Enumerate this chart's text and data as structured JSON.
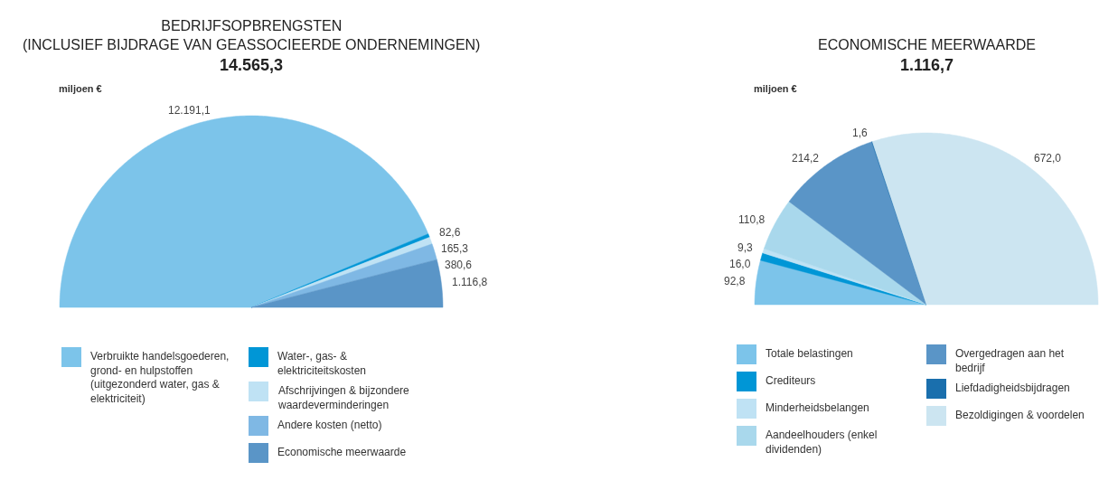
{
  "chart_data": [
    {
      "type": "pie",
      "title": "BEDRIJFSOPBRENGSTEN\n(INCLUSIEF BIJDRAGE VAN GEASSOCIEERDE ONDERNEMINGEN)",
      "subtitle": "14.565,3",
      "annotations": [
        "miljoen €"
      ],
      "categories": [
        "Verbruikte handelsgoederen, grond- en hulpstoffen (uitgezonderd water, gas & elektriciteit)",
        "Water-, gas- & elektriciteitskosten",
        "Afschrijvingen & bijzondere waardeverminderingen",
        "Andere kosten (netto)",
        "Economische meerwaarde"
      ],
      "values": [
        12191.1,
        82.6,
        165.3,
        380.6,
        1116.8
      ],
      "value_labels": [
        "12.191,1",
        "82,6",
        "165,3",
        "380,6",
        "1.116,8"
      ],
      "colors": [
        "#7cc4ea",
        "#0096d6",
        "#bfe2f4",
        "#7fb8e4",
        "#5a95c7"
      ],
      "legend": "bottom"
    },
    {
      "type": "pie",
      "title": "ECONOMISCHE MEERWAARDE",
      "subtitle": "1.116,7",
      "annotations": [
        "miljoen €"
      ],
      "categories": [
        "Totale belastingen",
        "Crediteurs",
        "Minderheidsbelangen",
        "Aandeelhouders (enkel dividenden)",
        "Overgedragen aan het bedrijf",
        "Liefdadigheidsbijdragen",
        "Bezoldigingen & voordelen"
      ],
      "values": [
        92.8,
        16.0,
        9.3,
        110.8,
        214.2,
        1.6,
        672.0
      ],
      "value_labels": [
        "92,8",
        "16,0",
        "9,3",
        "110,8",
        "214,2",
        "1,6",
        "672,0"
      ],
      "colors": [
        "#7cc4ea",
        "#0096d6",
        "#bfe2f4",
        "#a9d8ec",
        "#5a95c7",
        "#1a6fad",
        "#cce5f1"
      ],
      "legend": "bottom"
    }
  ]
}
